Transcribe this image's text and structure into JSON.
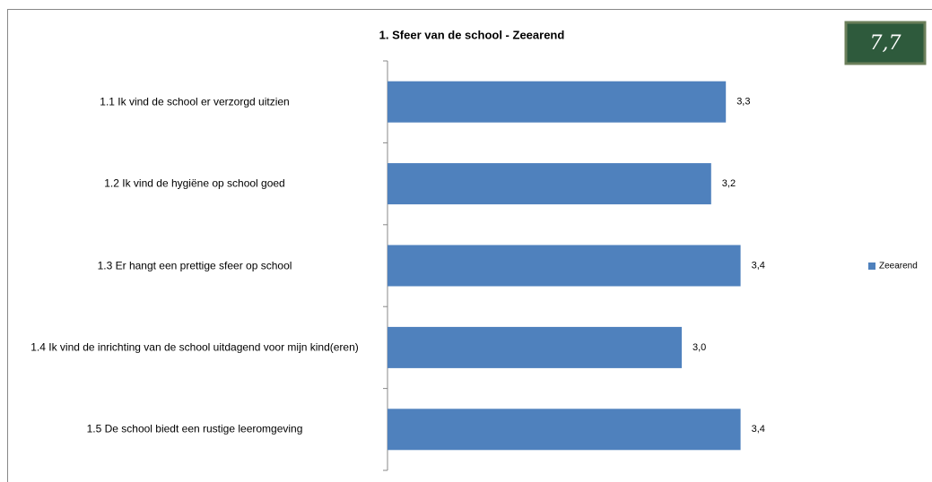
{
  "chart_data": {
    "type": "hbar",
    "title": "1. Sfeer van de school - Zeearend",
    "categories": [
      "1.1 Ik vind de school er verzorgd uitzien",
      "1.2 Ik vind de hygiëne op school goed",
      "1.3 Er hangt een prettige sfeer op school",
      "1.4 Ik vind de inrichting van de school uitdagend voor mijn kind(eren)",
      "1.5 De school biedt een rustige leeromgeving"
    ],
    "series": [
      {
        "name": "Zeearend",
        "color": "#4f81bd",
        "values": [
          3.3,
          3.2,
          3.4,
          3.0,
          3.4
        ],
        "value_labels": [
          "3,3",
          "3,2",
          "3,4",
          "3,0",
          "3,4"
        ]
      }
    ],
    "xlim": [
      1,
      4
    ],
    "legend": "right"
  },
  "badge": "7,7"
}
